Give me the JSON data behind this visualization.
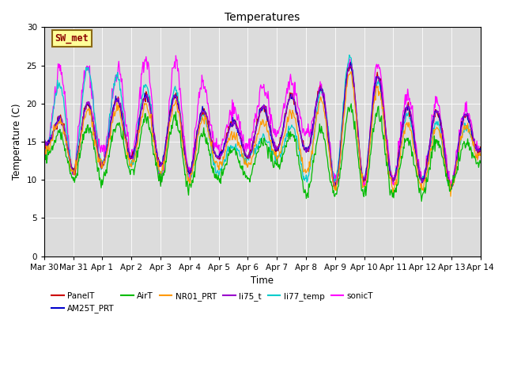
{
  "title": "Temperatures",
  "xlabel": "Time",
  "ylabel": "Temperature (C)",
  "ylim": [
    0,
    30
  ],
  "yticks": [
    0,
    5,
    10,
    15,
    20,
    25,
    30
  ],
  "xtick_labels": [
    "Mar 30",
    "Mar 31",
    "Apr 1",
    "Apr 2",
    "Apr 3",
    "Apr 4",
    "Apr 5",
    "Apr 6",
    "Apr 7",
    "Apr 8",
    "Apr 9",
    "Apr 10",
    "Apr 11",
    "Apr 12",
    "Apr 13",
    "Apr 14"
  ],
  "background_color": "#dcdcdc",
  "series_colors": {
    "PanelT": "#cc0000",
    "AM25T_PRT": "#0000cc",
    "AirT": "#00bb00",
    "NR01_PRT": "#ff9900",
    "li75_t": "#9900cc",
    "li77_temp": "#00cccc",
    "sonicT": "#ff00ff"
  },
  "annotation_text": "SW_met",
  "annotation_color": "#8b0000",
  "annotation_bg": "#ffff99",
  "annotation_border": "#8b6914",
  "figsize": [
    6.4,
    4.8
  ],
  "dpi": 100
}
